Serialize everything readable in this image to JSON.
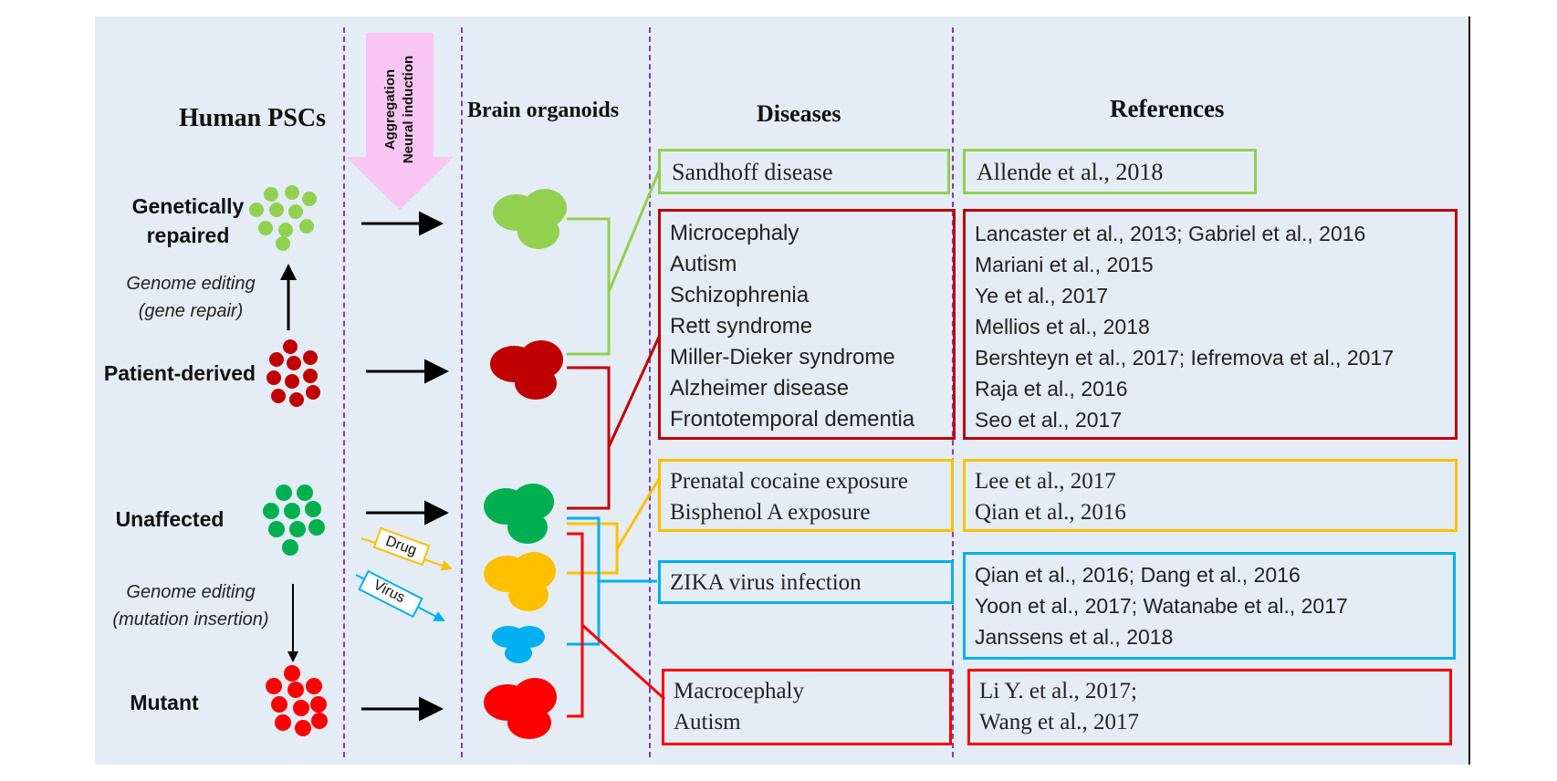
{
  "headers": {
    "human_pscs": "Human PSCs",
    "brain_organoids": "Brain organoids",
    "diseases": "Diseases",
    "references": "References"
  },
  "process_arrow": {
    "line1": "Aggregation",
    "line2": "Neural induction",
    "color": "#f9c6f4"
  },
  "rows": {
    "genetically_repaired": "Genetically\nrepaired",
    "patient_derived": "Patient-derived",
    "unaffected": "Unaffected",
    "mutant": "Mutant"
  },
  "editing": {
    "gene_repair": "Genome editing\n(gene repair)",
    "mutation_insertion": "Genome editing\n(mutation insertion)"
  },
  "treatments": {
    "drug": "Drug",
    "virus": "Virus"
  },
  "colors": {
    "light_green": "#92d050",
    "dark_red": "#c00000",
    "green": "#00b050",
    "yellow": "#ffc000",
    "blue": "#00b0f0",
    "red": "#ff0000"
  },
  "diseases": {
    "sandhoff": [
      "Sandhoff disease"
    ],
    "patient": [
      "Microcephaly",
      "Autism",
      "Schizophrenia",
      "Rett syndrome",
      "Miller-Dieker syndrome",
      "Alzheimer disease",
      "Frontotemporal dementia"
    ],
    "exposure": [
      "Prenatal cocaine exposure",
      "Bisphenol A exposure"
    ],
    "zika": [
      "ZIKA virus infection"
    ],
    "mutant": [
      "Macrocephaly",
      "Autism"
    ]
  },
  "references": {
    "sandhoff": [
      "Allende et al., 2018"
    ],
    "patient": [
      "Lancaster et al., 2013; Gabriel et al., 2016",
      "Mariani et al., 2015",
      "Ye et al., 2017",
      "Mellios et al., 2018",
      "Bershteyn et al., 2017; Iefremova et al., 2017",
      "Raja et al., 2016",
      "Seo et al., 2017"
    ],
    "exposure": [
      "Lee et al., 2017",
      "Qian et al., 2016"
    ],
    "zika": [
      "Qian et al., 2016; Dang et al., 2016",
      "Yoon et al., 2017; Watanabe et al., 2017",
      "Janssens et al., 2018"
    ],
    "mutant": [
      "Li Y. et al., 2017;",
      "Wang et al., 2017"
    ]
  }
}
